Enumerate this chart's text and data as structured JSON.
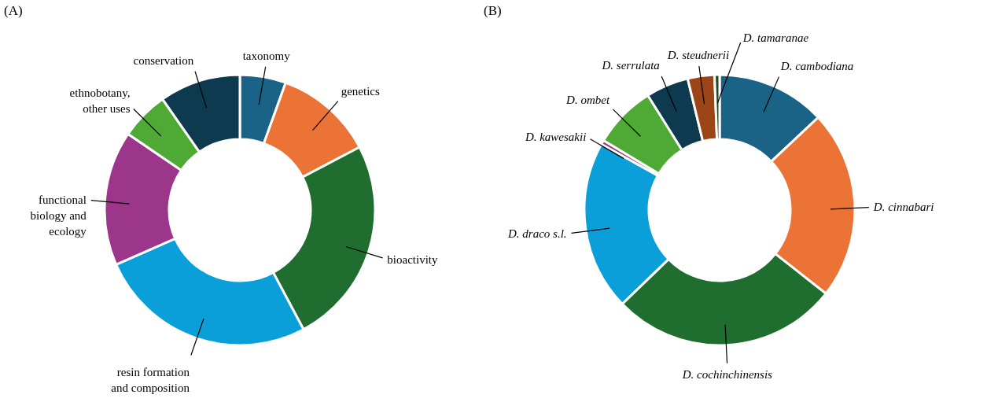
{
  "chart_data": [
    {
      "type": "donut",
      "title": "(A)",
      "categories": [
        "taxonomy",
        "genetics",
        "bioactivity",
        "resin formation and composition",
        "functional biology and ecology",
        "ethnobotany, other uses",
        "conservation"
      ],
      "values": [
        5.5,
        11.8,
        24.9,
        26.2,
        16.1,
        5.8,
        9.7
      ],
      "colors": [
        "#1a6386",
        "#ec7336",
        "#1f6e30",
        "#0a9fd8",
        "#9b368b",
        "#4fa935",
        "#0e3a4f"
      ]
    },
    {
      "type": "donut",
      "title": "(B)",
      "categories": [
        "D. cambodiana",
        "D. cinnabari",
        "D. cochinchinensis",
        "D. draco s.l.",
        "D. kawesakii",
        "D. ombet",
        "D. serrulata",
        "D. steudnerii",
        "D. tamaranae"
      ],
      "values": [
        13.0,
        22.6,
        27.2,
        20.3,
        0.5,
        7.5,
        5.1,
        3.2,
        0.6
      ],
      "colors": [
        "#1a6386",
        "#ec7336",
        "#1f6e30",
        "#0a9fd8",
        "#9b368b",
        "#4fa935",
        "#0e3a4f",
        "#9b4518",
        "#1e4a1e"
      ]
    }
  ]
}
